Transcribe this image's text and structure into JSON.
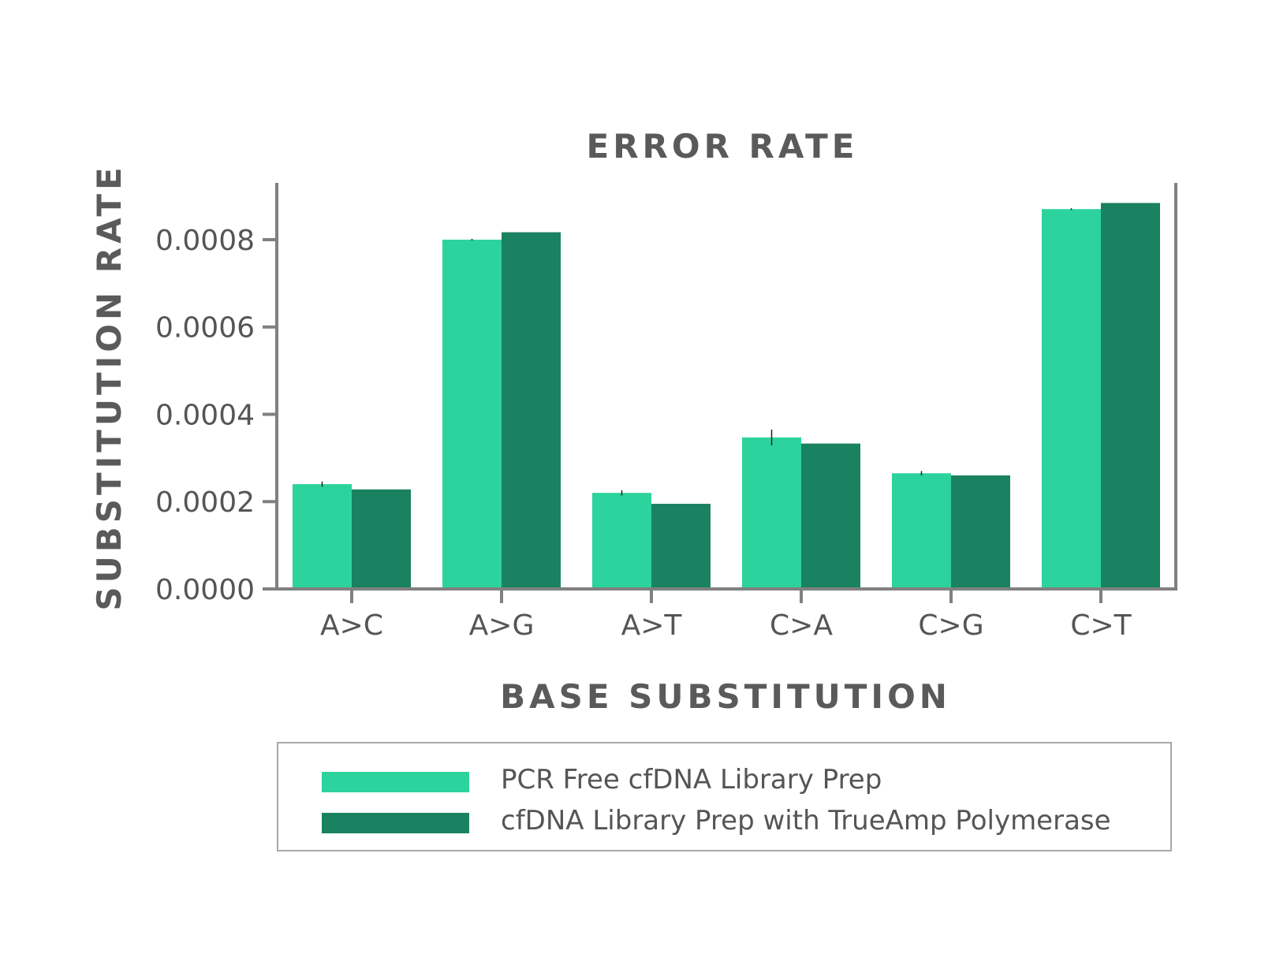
{
  "colors": {
    "series1": "#2cd39c",
    "series2": "#1a8260",
    "axis": "#808080",
    "text": "#555555",
    "title": "#5a5a5a"
  },
  "chart_data": {
    "type": "bar",
    "title": "ERROR RATE",
    "xlabel": "BASE SUBSTITUTION",
    "ylabel": "SUBSTITUTION RATE",
    "categories": [
      "A>C",
      "A>G",
      "A>T",
      "C>A",
      "C>G",
      "C>T"
    ],
    "series": [
      {
        "name": "PCR Free cfDNA Library Prep",
        "values": [
          0.00024,
          0.0008,
          0.00022,
          0.000347,
          0.000265,
          0.00087
        ],
        "error": [
          6e-06,
          2e-06,
          6e-06,
          1.8e-05,
          5e-06,
          2e-06
        ]
      },
      {
        "name": "cfDNA Library Prep with TrueAmp Polymerase",
        "values": [
          0.000228,
          0.000817,
          0.000195,
          0.000333,
          0.00026,
          0.000884
        ]
      }
    ],
    "ylim": [
      0,
      0.00093
    ],
    "yticks": [
      0.0,
      0.0002,
      0.0004,
      0.0006,
      0.0008
    ],
    "ytick_labels": [
      "0.0000",
      "0.0002",
      "0.0004",
      "0.0006",
      "0.0008"
    ],
    "grid": false,
    "legend_position": "bottom"
  }
}
